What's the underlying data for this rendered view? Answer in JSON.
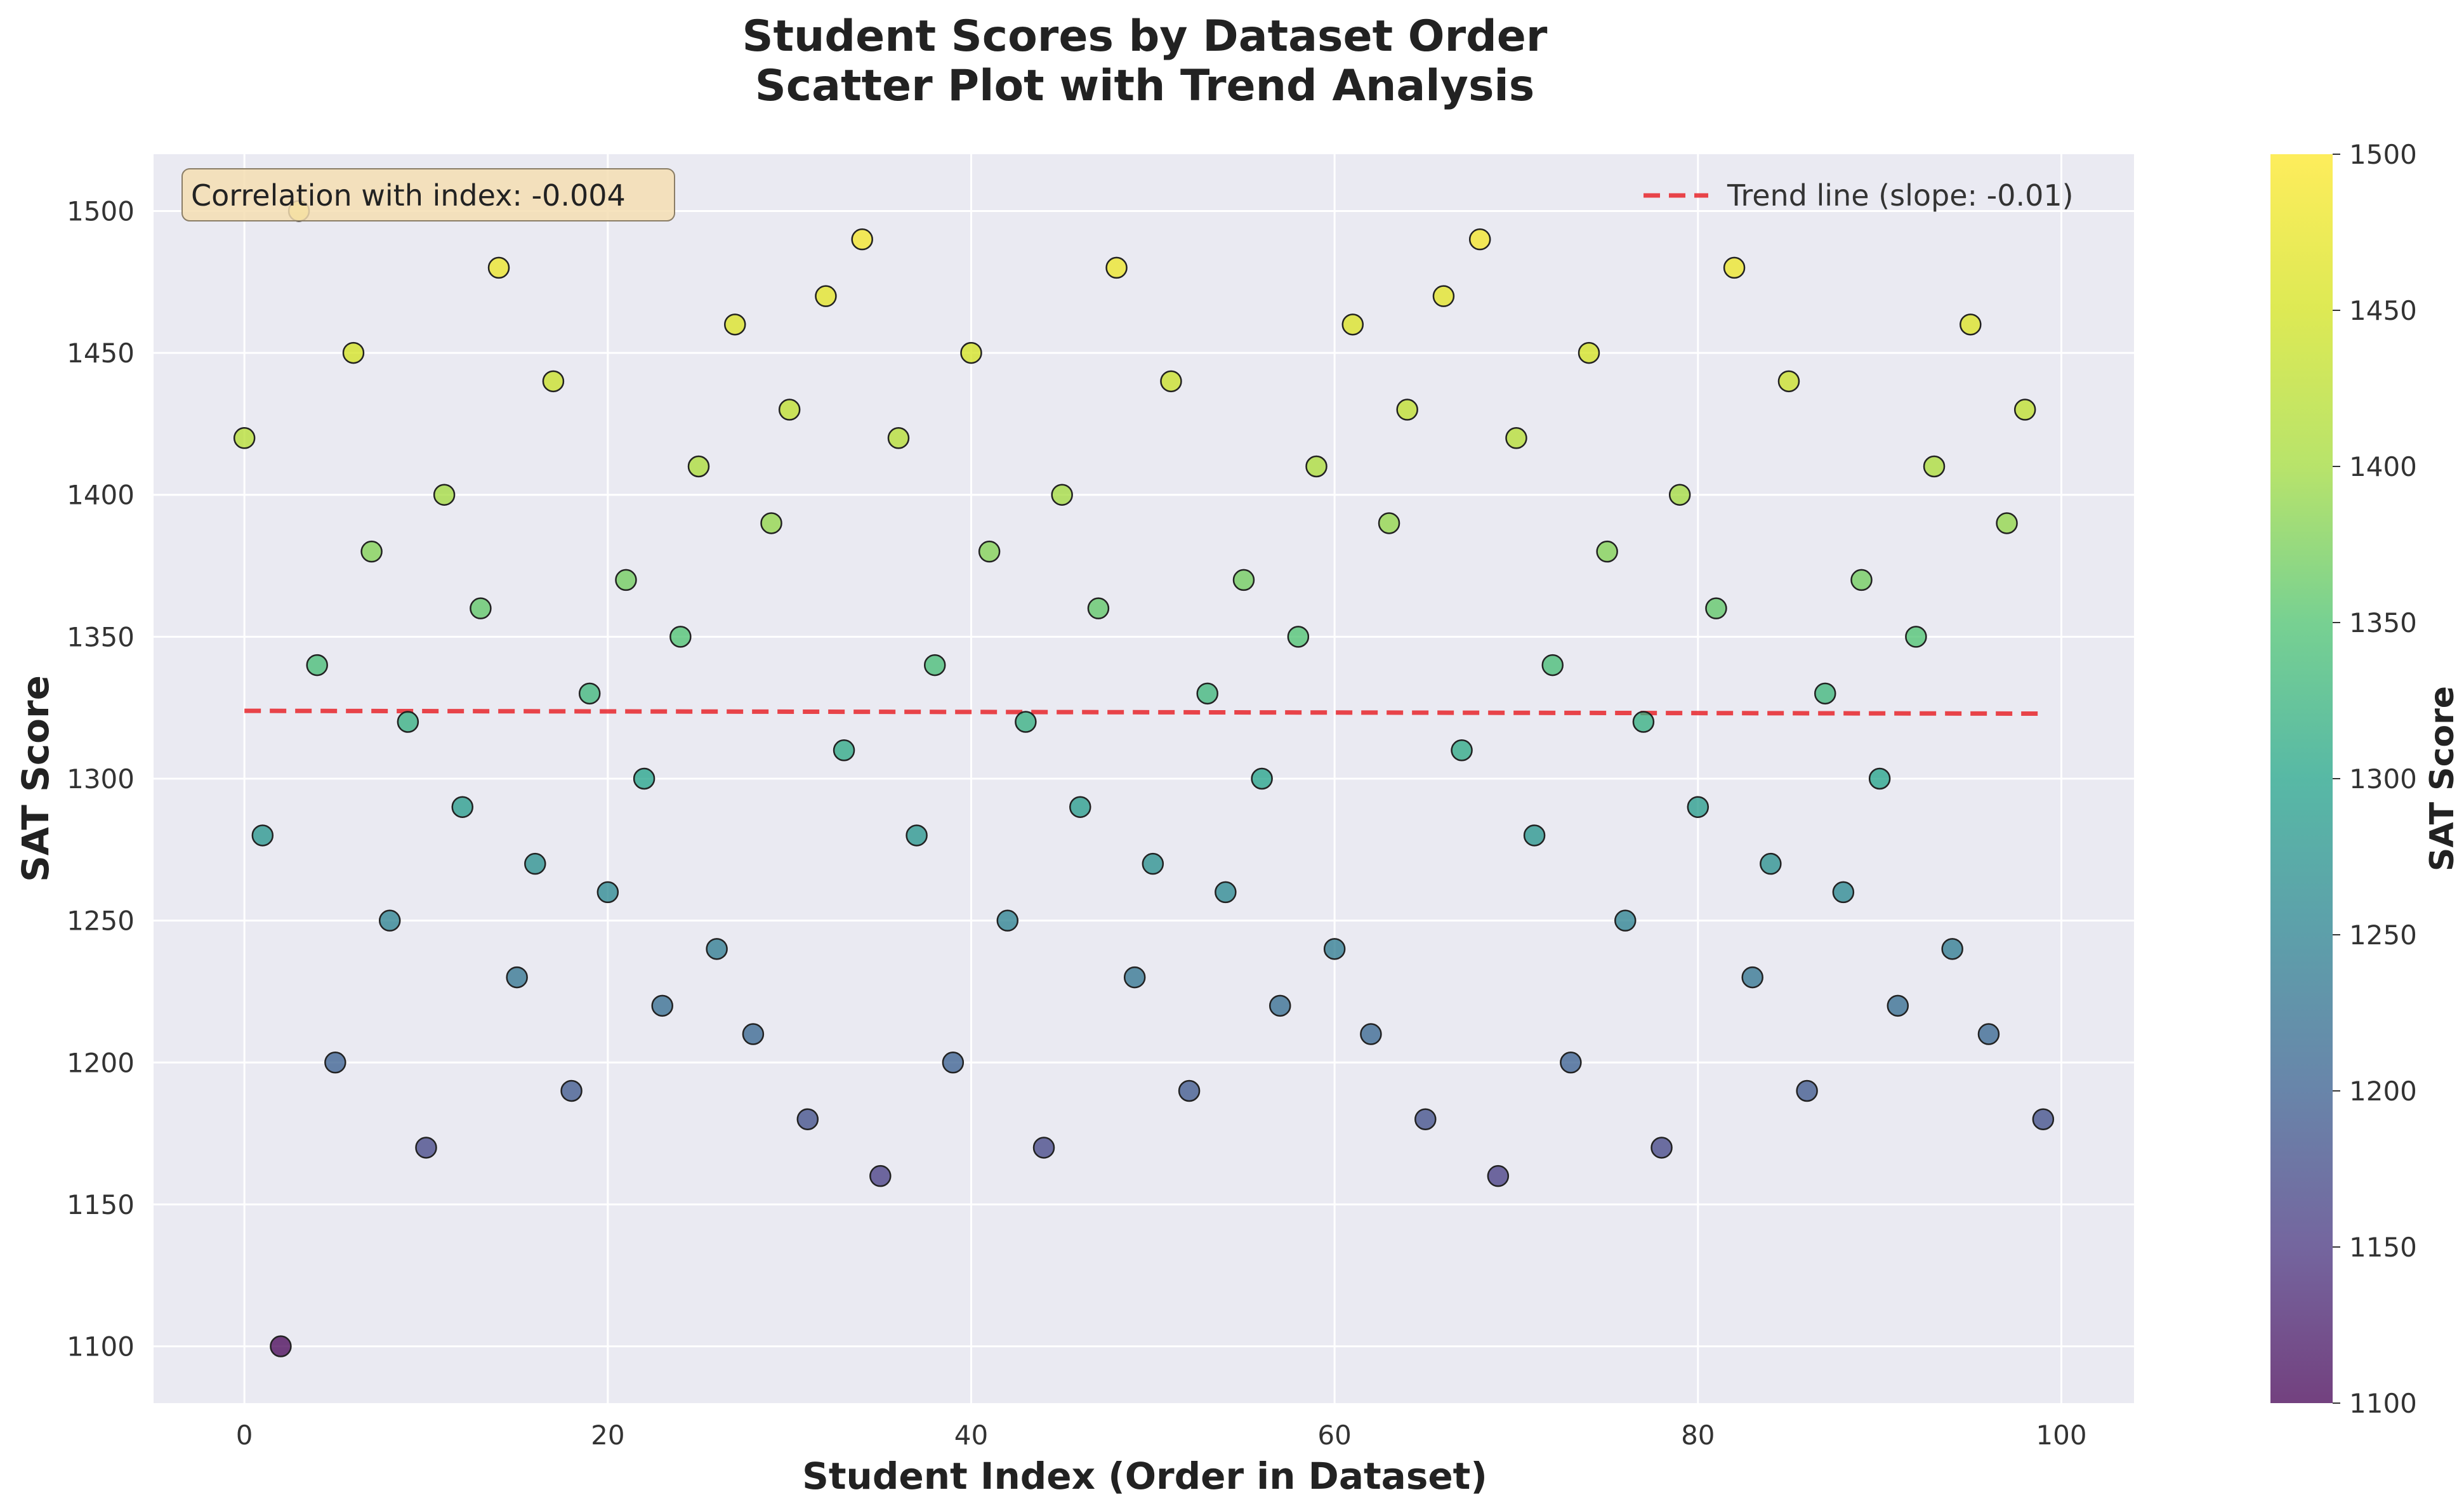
{
  "chart_data": {
    "type": "scatter",
    "title": "Student Scores by Dataset Order",
    "subtitle": "Scatter Plot with Trend Analysis",
    "xlabel": "Student Index (Order in Dataset)",
    "ylabel": "SAT Score",
    "xlim": [
      -5,
      104
    ],
    "ylim": [
      1080,
      1520
    ],
    "xticks": [
      0,
      20,
      40,
      60,
      80,
      100
    ],
    "yticks": [
      1100,
      1150,
      1200,
      1250,
      1300,
      1350,
      1400,
      1450,
      1500
    ],
    "grid": true,
    "x": [
      0,
      1,
      2,
      3,
      4,
      5,
      6,
      7,
      8,
      9,
      10,
      11,
      12,
      13,
      14,
      15,
      16,
      17,
      18,
      19,
      20,
      21,
      22,
      23,
      24,
      25,
      26,
      27,
      28,
      29,
      30,
      31,
      32,
      33,
      34,
      35,
      36,
      37,
      38,
      39,
      40,
      41,
      42,
      43,
      44,
      45,
      46,
      47,
      48,
      49,
      50,
      51,
      52,
      53,
      54,
      55,
      56,
      57,
      58,
      59,
      60,
      61,
      62,
      63,
      64,
      65,
      66,
      67,
      68,
      69,
      70,
      71,
      72,
      73,
      74,
      75,
      76,
      77,
      78,
      79,
      80,
      81,
      82,
      83,
      84,
      85,
      86,
      87,
      88,
      89,
      90,
      91,
      92,
      93,
      94,
      95,
      96,
      97,
      98,
      99
    ],
    "y": [
      1420,
      1280,
      1100,
      1500,
      1340,
      1200,
      1450,
      1380,
      1250,
      1320,
      1170,
      1400,
      1290,
      1360,
      1480,
      1230,
      1270,
      1440,
      1190,
      1330,
      1260,
      1370,
      1300,
      1220,
      1350,
      1410,
      1240,
      1460,
      1210,
      1390,
      1430,
      1180,
      1470,
      1310,
      1490,
      1160,
      1420,
      1280,
      1340,
      1200,
      1450,
      1380,
      1250,
      1320,
      1170,
      1400,
      1290,
      1360,
      1480,
      1230,
      1270,
      1440,
      1190,
      1330,
      1260,
      1370,
      1300,
      1220,
      1350,
      1410,
      1240,
      1460,
      1210,
      1390,
      1430,
      1180,
      1470,
      1310,
      1490,
      1160,
      1420,
      1280,
      1340,
      1200,
      1450,
      1380,
      1250,
      1320,
      1170,
      1400,
      1290,
      1360,
      1480,
      1230,
      1270,
      1440,
      1190,
      1330,
      1260,
      1370,
      1300,
      1220,
      1350,
      1410,
      1240,
      1460,
      1210,
      1390,
      1430,
      1180
    ],
    "trend_line": {
      "label": "Trend line (slope: -0.01)",
      "slope": -0.01,
      "intercept": 1323.9,
      "x_range": [
        0,
        99
      ],
      "color": "#e8262b",
      "style": "dashed"
    },
    "annotation": "Correlation with index: -0.004",
    "legend_position": "upper right",
    "colormap": "viridis",
    "colorbar": {
      "label": "SAT Score",
      "min": 1100,
      "max": 1500,
      "ticks": [
        1100,
        1150,
        1200,
        1250,
        1300,
        1350,
        1400,
        1450,
        1500
      ]
    },
    "colors": {
      "plot_background": "#eaeaf2",
      "grid": "#ffffff",
      "annotation_background": "#f5deb3",
      "marker_edge": "#222222"
    }
  }
}
